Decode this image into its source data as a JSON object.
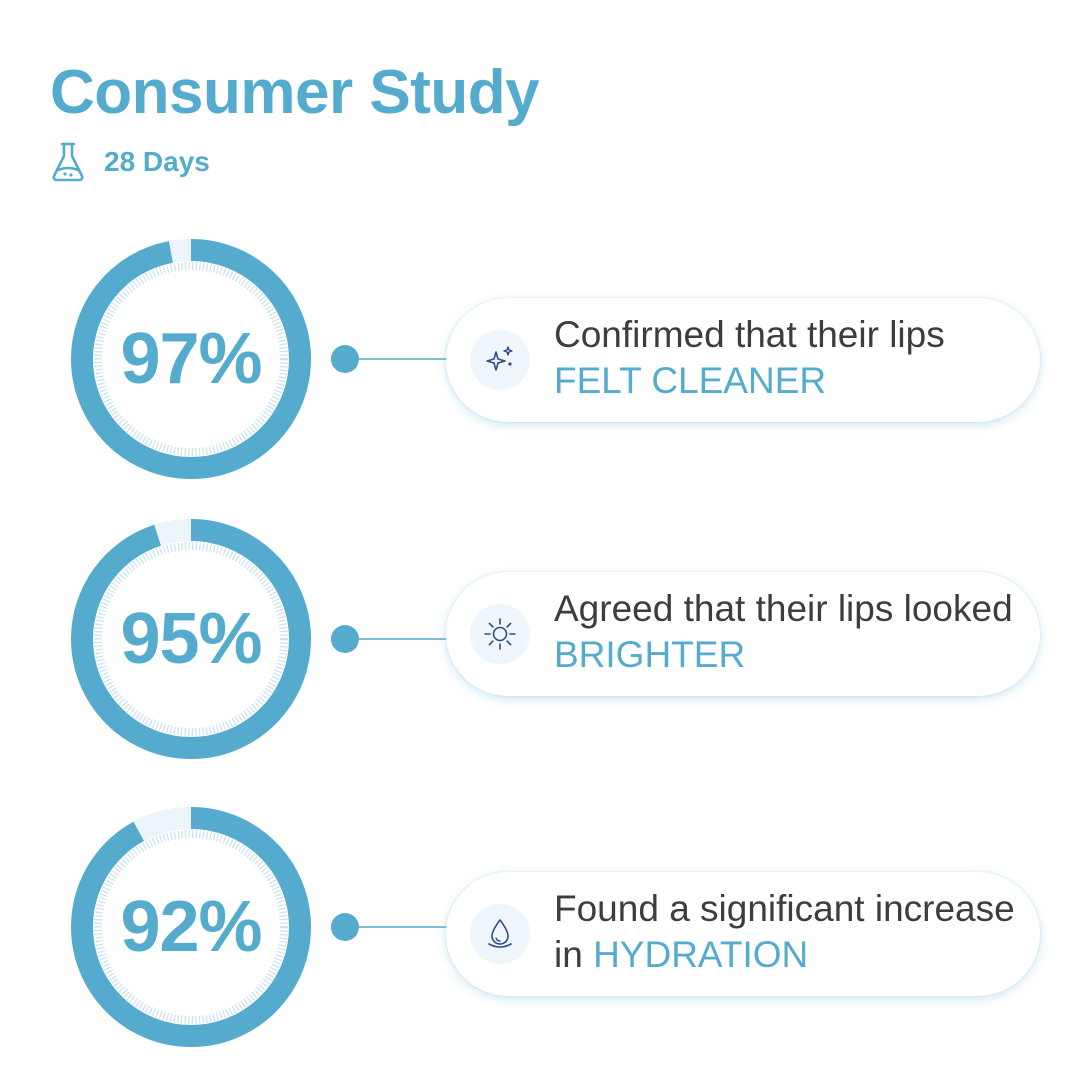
{
  "header": {
    "title": "Consumer Study",
    "duration_icon": "flask-icon",
    "duration": "28 Days"
  },
  "accent_color": "#54abcd",
  "text_color": "#3d3d3d",
  "stats": [
    {
      "percent_label": "97%",
      "value": 97,
      "icon": "sparkles-icon",
      "text": "Confirmed that their lips ",
      "highlight": "FELT CLEANER"
    },
    {
      "percent_label": "95%",
      "value": 95,
      "icon": "sun-icon",
      "text": "Agreed that their lips looked ",
      "highlight": "BRIGHTER"
    },
    {
      "percent_label": "92%",
      "value": 92,
      "icon": "water-drop-icon",
      "text": "Found a significant increase in ",
      "highlight": "HYDRATION"
    }
  ]
}
